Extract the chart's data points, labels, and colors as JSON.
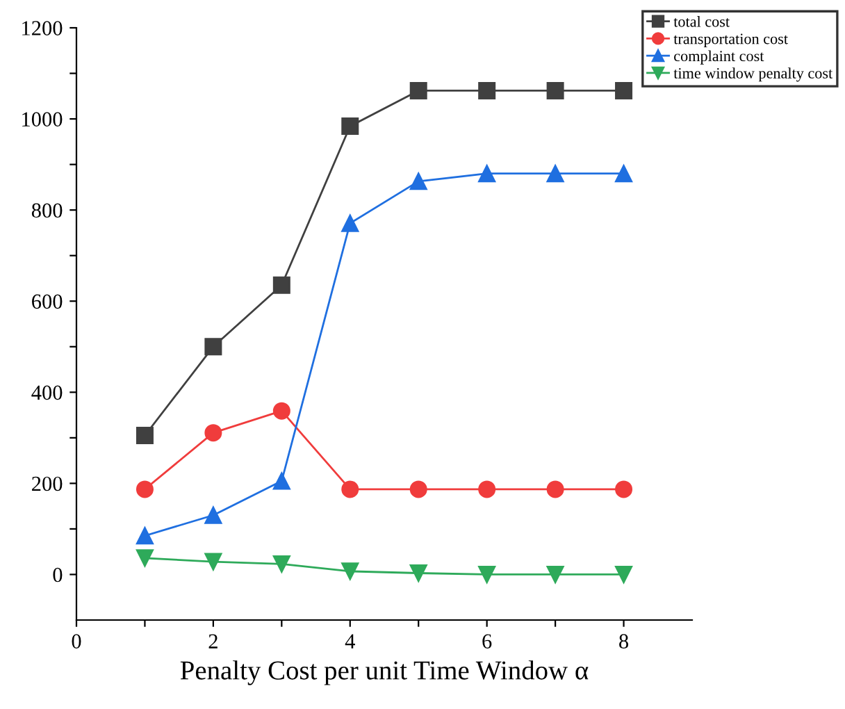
{
  "chart_data": {
    "type": "line",
    "xlabel": "Penalty Cost per unit Time Window α",
    "x": [
      1,
      2,
      3,
      4,
      5,
      6,
      7,
      8
    ],
    "series": [
      {
        "name": "total cost",
        "color": "#404040",
        "marker": "square",
        "values": [
          305,
          500,
          635,
          984,
          1062,
          1062,
          1062,
          1062
        ]
      },
      {
        "name": "transportation cost",
        "color": "#f03c3c",
        "marker": "circle",
        "values": [
          187,
          311,
          359,
          187,
          187,
          187,
          187,
          187
        ]
      },
      {
        "name": "complaint cost",
        "color": "#1f6fe0",
        "marker": "triangle",
        "values": [
          85,
          130,
          205,
          771,
          863,
          880,
          880,
          880
        ]
      },
      {
        "name": "time window penalty cost",
        "color": "#2eaa5a",
        "marker": "triangle_down",
        "values": [
          36,
          28,
          23,
          7,
          3,
          0,
          0,
          0
        ]
      }
    ],
    "xlim": [
      0,
      9
    ],
    "ylim": [
      -100,
      1200
    ],
    "xticks": [
      0,
      {
        "value": 1,
        "label": null
      },
      2,
      {
        "value": 3,
        "label": null
      },
      4,
      {
        "value": 5,
        "label": null
      },
      6,
      {
        "value": 7,
        "label": null
      },
      8
    ],
    "yticks": [
      0,
      {
        "value": 100,
        "label": null
      },
      200,
      {
        "value": 300,
        "label": null
      },
      400,
      {
        "value": 500,
        "label": null
      },
      600,
      {
        "value": 700,
        "label": null
      },
      800,
      {
        "value": 900,
        "label": null
      },
      1000,
      {
        "value": 1100,
        "label": null
      },
      1200
    ],
    "grid": false,
    "legend": "top right",
    "line_style": "solid"
  }
}
